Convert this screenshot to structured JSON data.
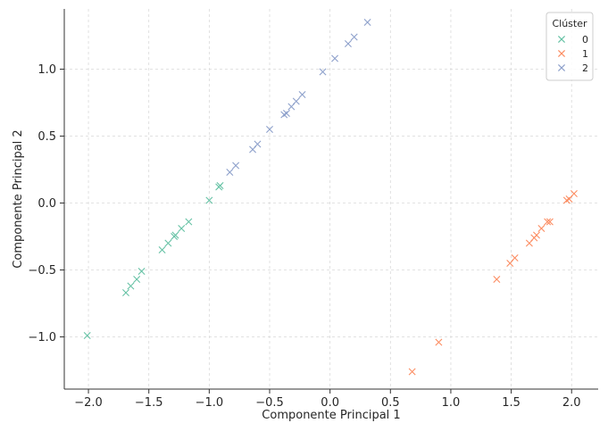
{
  "chart_data": {
    "type": "scatter",
    "title": "",
    "xlabel": "Componente Principal 1",
    "ylabel": "Componente Principal 2",
    "xlim": [
      -2.2,
      2.22
    ],
    "ylim": [
      -1.39,
      1.45
    ],
    "xticks": [
      -2.0,
      -1.5,
      -1.0,
      -0.5,
      0.0,
      0.5,
      1.0,
      1.5,
      2.0
    ],
    "xtick_labels": [
      "−2.0",
      "−1.5",
      "−1.0",
      "−0.5",
      "0.0",
      "0.5",
      "1.0",
      "1.5",
      "2.0"
    ],
    "yticks": [
      -1.0,
      -0.5,
      0.0,
      0.5,
      1.0
    ],
    "ytick_labels": [
      "−1.0",
      "−0.5",
      "0.0",
      "0.5",
      "1.0"
    ],
    "grid": true,
    "marker": "x",
    "legend": {
      "title": "Clúster",
      "placement": "top-right"
    },
    "series": [
      {
        "name": "0",
        "color": "#66c2a5",
        "points": [
          [
            -2.01,
            -0.99
          ],
          [
            -1.69,
            -0.67
          ],
          [
            -1.65,
            -0.62
          ],
          [
            -1.6,
            -0.57
          ],
          [
            -1.56,
            -0.51
          ],
          [
            -1.39,
            -0.35
          ],
          [
            -1.34,
            -0.3
          ],
          [
            -1.29,
            -0.25
          ],
          [
            -1.28,
            -0.24
          ],
          [
            -1.23,
            -0.19
          ],
          [
            -1.17,
            -0.14
          ],
          [
            -1.0,
            0.02
          ],
          [
            -0.92,
            0.12
          ],
          [
            -0.91,
            0.13
          ]
        ]
      },
      {
        "name": "1",
        "color": "#fc8d62",
        "points": [
          [
            0.68,
            -1.26
          ],
          [
            0.9,
            -1.04
          ],
          [
            1.38,
            -0.57
          ],
          [
            1.49,
            -0.45
          ],
          [
            1.53,
            -0.41
          ],
          [
            1.65,
            -0.3
          ],
          [
            1.69,
            -0.26
          ],
          [
            1.71,
            -0.24
          ],
          [
            1.75,
            -0.19
          ],
          [
            1.8,
            -0.14
          ],
          [
            1.82,
            -0.14
          ],
          [
            1.96,
            0.02
          ],
          [
            1.98,
            0.03
          ],
          [
            2.02,
            0.07
          ]
        ]
      },
      {
        "name": "2",
        "color": "#8da0cb",
        "points": [
          [
            -0.83,
            0.23
          ],
          [
            -0.78,
            0.28
          ],
          [
            -0.64,
            0.4
          ],
          [
            -0.6,
            0.44
          ],
          [
            -0.5,
            0.55
          ],
          [
            -0.38,
            0.66
          ],
          [
            -0.36,
            0.67
          ],
          [
            -0.32,
            0.72
          ],
          [
            -0.28,
            0.76
          ],
          [
            -0.23,
            0.81
          ],
          [
            -0.06,
            0.98
          ],
          [
            0.04,
            1.08
          ],
          [
            0.15,
            1.19
          ],
          [
            0.2,
            1.24
          ],
          [
            0.31,
            1.35
          ]
        ]
      }
    ]
  }
}
